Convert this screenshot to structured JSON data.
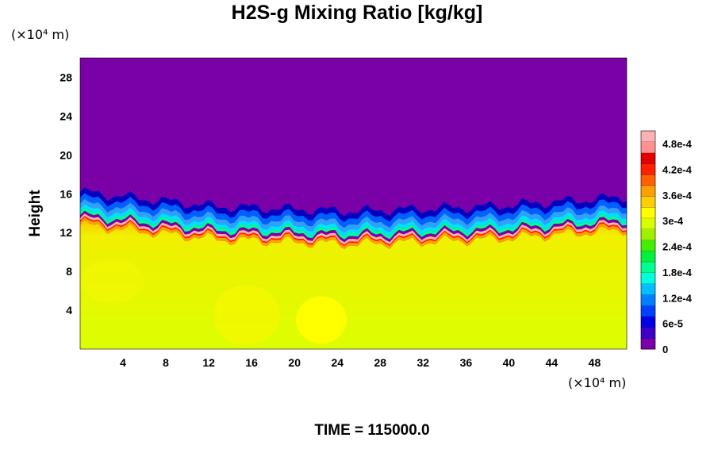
{
  "chart_data": {
    "type": "heatmap",
    "title": "H2S-g Mixing Ratio [kg/kg]",
    "ylabel": "Height",
    "y_unit": "(×10⁴ m)",
    "x_unit": "(×10⁴ m)",
    "xlim": [
      0,
      51
    ],
    "ylim": [
      0,
      30
    ],
    "x_ticks": [
      4,
      8,
      12,
      16,
      20,
      24,
      28,
      32,
      36,
      40,
      44,
      48
    ],
    "y_ticks": [
      4,
      8,
      12,
      16,
      20,
      24,
      28
    ],
    "colorbar": {
      "range": [
        0,
        0.00051
      ],
      "tick_labels": [
        "0",
        "6e-5",
        "1.2e-4",
        "1.8e-4",
        "2.4e-4",
        "3e-4",
        "3.6e-4",
        "4.2e-4",
        "4.8e-4"
      ],
      "tick_values": [
        0,
        6e-05,
        0.00012,
        0.00018,
        0.00024,
        0.0003,
        0.00036,
        0.00042,
        0.00048
      ],
      "colors": [
        "#7a00a8",
        "#3d00c8",
        "#0000e6",
        "#0040ff",
        "#0080ff",
        "#00c0ff",
        "#00ffe0",
        "#00ff90",
        "#00f040",
        "#40f000",
        "#a0f000",
        "#d8ff00",
        "#ffff00",
        "#ffd000",
        "#ffa000",
        "#ff6000",
        "#ff2000",
        "#e00000",
        "#ff9090",
        "#ffb0b0"
      ]
    },
    "field_description": {
      "upper_region_value": 0,
      "lower_region_value": 0.00033,
      "interface_height_approx": [
        13,
        11.5,
        11,
        11.5,
        12.5
      ]
    },
    "footer": "TIME = 115000.0"
  }
}
